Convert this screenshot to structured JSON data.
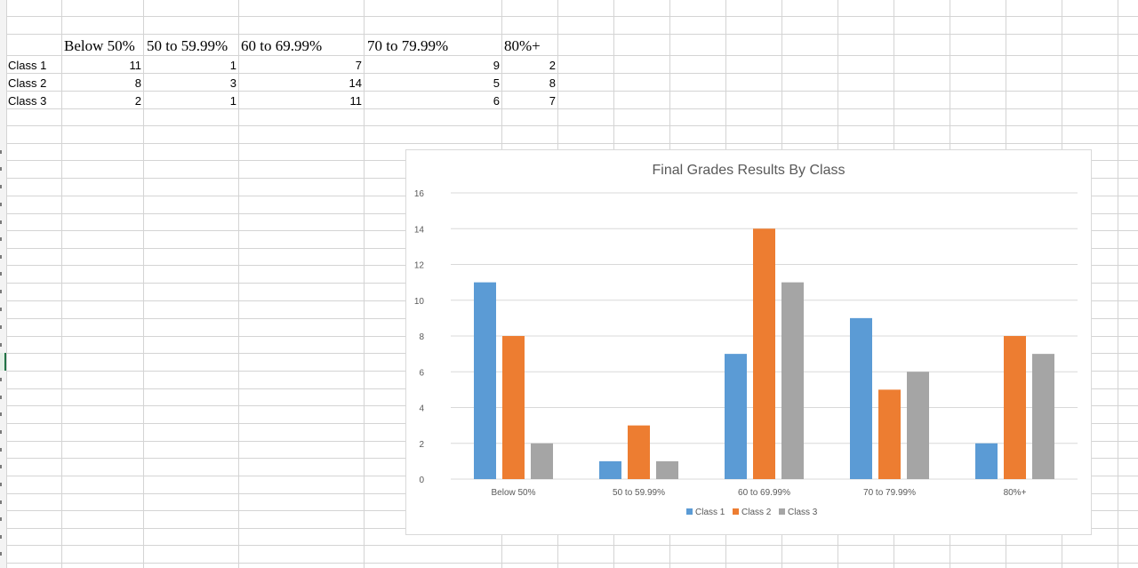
{
  "sheet": {
    "column_headers": [
      "Below 50%",
      "50 to 59.99%",
      "60 to 69.99%",
      "70 to 79.99%",
      "80%+"
    ],
    "rows": [
      {
        "label": "Class 1",
        "values": [
          11,
          1,
          7,
          9,
          2
        ]
      },
      {
        "label": "Class 2",
        "values": [
          8,
          3,
          14,
          5,
          8
        ]
      },
      {
        "label": "Class 3",
        "values": [
          2,
          1,
          11,
          6,
          7
        ]
      }
    ]
  },
  "chart_data": {
    "type": "bar",
    "title": "Final Grades Results By Class",
    "categories": [
      "Below 50%",
      "50 to 59.99%",
      "60 to 69.99%",
      "70 to 79.99%",
      "80%+"
    ],
    "series": [
      {
        "name": "Class 1",
        "values": [
          11,
          1,
          7,
          9,
          2
        ],
        "color": "#5b9bd5"
      },
      {
        "name": "Class 2",
        "values": [
          8,
          3,
          14,
          5,
          8
        ],
        "color": "#ed7d31"
      },
      {
        "name": "Class 3",
        "values": [
          2,
          1,
          11,
          6,
          7
        ],
        "color": "#a5a5a5"
      }
    ],
    "ylim": [
      0,
      16
    ],
    "yticks": [
      "0",
      "2",
      "4",
      "6",
      "8",
      "10",
      "12",
      "14",
      "16"
    ],
    "grid": true,
    "legend": "bottom",
    "xlabel": "",
    "ylabel": ""
  }
}
